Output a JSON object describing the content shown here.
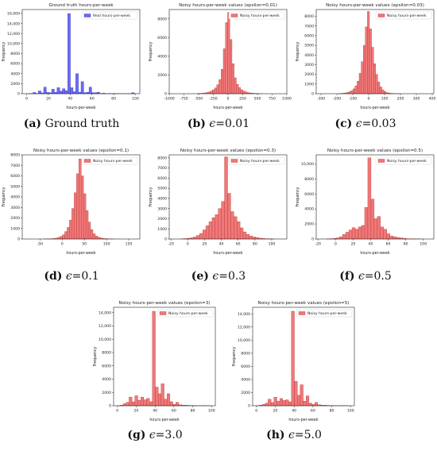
{
  "chart_data": [
    {
      "type": "bar",
      "title": "Ground truth hours-per-week",
      "xlabel": "hours-per-week",
      "ylabel": "Frequency",
      "legend": "Real hours-per-week",
      "color": "#6b6bf2",
      "edge": "#3333bb",
      "xlim": [
        -4,
        104
      ],
      "ylim": [
        0,
        16800
      ],
      "xticks": [
        0,
        20,
        40,
        60,
        80,
        100
      ],
      "yticks": [
        0,
        2000,
        4000,
        6000,
        8000,
        10000,
        12000,
        14000,
        16000
      ],
      "bin_start": 1,
      "bin_width": 2.45,
      "values": [
        20,
        30,
        250,
        60,
        550,
        150,
        1300,
        250,
        200,
        900,
        300,
        1200,
        500,
        1000,
        600,
        16000,
        1200,
        400,
        4000,
        300,
        2400,
        200,
        300,
        1300,
        200,
        200,
        300,
        60,
        100,
        20,
        30,
        20,
        60,
        20,
        20,
        10,
        20,
        10,
        20,
        200
      ],
      "caption_label": "(a)",
      "caption_text": "Ground truth",
      "caption_eps": ""
    },
    {
      "type": "bar",
      "title": "Noisy hours-per-week values (epsilon=0.01)",
      "xlabel": "hours-per-week",
      "ylabel": "Frequency",
      "legend": "Noisy hours-per-week",
      "color": "#f07878",
      "edge": "#b03030",
      "xlim": [
        -1000,
        1000
      ],
      "ylim": [
        0,
        9000
      ],
      "xticks": [
        -1000,
        -750,
        -500,
        -250,
        0,
        250,
        500,
        750,
        1000
      ],
      "yticks": [
        0,
        2000,
        4000,
        6000,
        8000
      ],
      "bin_start": -525,
      "bin_width": 37,
      "values": [
        20,
        30,
        50,
        80,
        120,
        180,
        280,
        420,
        620,
        950,
        1500,
        2600,
        4800,
        7600,
        8700,
        5800,
        3200,
        1700,
        1000,
        650,
        420,
        280,
        180,
        120,
        80,
        50,
        30,
        20,
        10,
        5
      ],
      "caption_label": "(b)",
      "caption_text": "",
      "caption_eps": "0.01"
    },
    {
      "type": "bar",
      "title": "Noisy hours-per-week values (epsilon=0.03)",
      "xlabel": "hours-per-week",
      "ylabel": "Frequency",
      "legend": "Noisy hours-per-week",
      "color": "#f07878",
      "edge": "#b03030",
      "xlim": [
        -330,
        410
      ],
      "ylim": [
        0,
        8700
      ],
      "xticks": [
        -300,
        -200,
        -100,
        0,
        100,
        200,
        300,
        400
      ],
      "yticks": [
        0,
        1000,
        2000,
        3000,
        4000,
        5000,
        6000,
        7000,
        8000
      ],
      "bin_start": -190,
      "bin_width": 13,
      "values": [
        20,
        30,
        50,
        80,
        130,
        200,
        320,
        500,
        800,
        1300,
        2100,
        3300,
        5000,
        6900,
        8500,
        6700,
        4800,
        3100,
        2000,
        1200,
        700,
        400,
        220,
        120,
        70,
        40,
        20,
        10,
        5,
        5
      ],
      "caption_label": "(c)",
      "caption_text": "",
      "caption_eps": "0.03"
    },
    {
      "type": "bar",
      "title": "Noisy hours-per-week values (epsilon=0.1)",
      "xlabel": "hours-per-week",
      "ylabel": "Frequency",
      "legend": "Noisy hours-per-week",
      "color": "#f07878",
      "edge": "#b03030",
      "xlim": [
        -90,
        175
      ],
      "ylim": [
        0,
        8000
      ],
      "xticks": [
        -50,
        0,
        50,
        100,
        150
      ],
      "yticks": [
        0,
        1000,
        2000,
        3000,
        4000,
        5000,
        6000,
        7000,
        8000
      ],
      "bin_start": -42,
      "bin_width": 5.3,
      "values": [
        5,
        10,
        20,
        30,
        50,
        80,
        150,
        250,
        400,
        700,
        1100,
        1800,
        2900,
        4400,
        6200,
        7600,
        6000,
        4300,
        2700,
        1600,
        900,
        500,
        280,
        160,
        90,
        50,
        30,
        20,
        10,
        5
      ],
      "caption_label": "(d)",
      "caption_text": "",
      "caption_eps": "0.1"
    },
    {
      "type": "bar",
      "title": "Noisy hours-per-week values (epsilon=0.3)",
      "xlabel": "hours-per-week",
      "ylabel": "Frequency",
      "legend": "Noisy hours-per-week",
      "color": "#f07878",
      "edge": "#b03030",
      "xlim": [
        -22,
        118
      ],
      "ylim": [
        0,
        8300
      ],
      "xticks": [
        -20,
        0,
        20,
        40,
        60,
        80,
        100
      ],
      "yticks": [
        0,
        1000,
        2000,
        3000,
        4000,
        5000,
        6000,
        7000,
        8000
      ],
      "bin_start": -8,
      "bin_width": 3.7,
      "values": [
        20,
        40,
        70,
        120,
        200,
        350,
        550,
        900,
        1300,
        1700,
        2100,
        2400,
        3000,
        3700,
        8100,
        4500,
        2700,
        2200,
        1700,
        1100,
        700,
        450,
        300,
        200,
        130,
        80,
        50,
        30,
        20,
        10
      ],
      "caption_label": "(e)",
      "caption_text": "",
      "caption_eps": "0.3"
    },
    {
      "type": "bar",
      "title": "Noisy hours-per-week values (epsilon=0.5)",
      "xlabel": "hours-per-week",
      "ylabel": "Frequency",
      "legend": "Noisy hours-per-week",
      "color": "#f07878",
      "edge": "#b03030",
      "xlim": [
        -22,
        112
      ],
      "ylim": [
        0,
        11200
      ],
      "xticks": [
        -20,
        0,
        20,
        40,
        60,
        80,
        100
      ],
      "yticks": [
        0,
        2000,
        4000,
        6000,
        8000,
        10000
      ],
      "bin_start": -10,
      "bin_width": 3.6,
      "values": [
        20,
        40,
        80,
        150,
        300,
        600,
        900,
        1200,
        1500,
        1300,
        1600,
        1800,
        4200,
        10800,
        5300,
        2700,
        3000,
        1600,
        1300,
        700,
        400,
        300,
        200,
        150,
        80,
        40,
        30,
        20,
        10,
        10
      ],
      "caption_label": "(f)",
      "caption_text": "",
      "caption_eps": "0.5"
    },
    {
      "type": "bar",
      "title": "Noisy hours-per-week values (epsilon=3)",
      "xlabel": "hours-per-week",
      "ylabel": "Frequency",
      "legend": "Noisy hours-per-week",
      "color": "#f07878",
      "edge": "#b03030",
      "xlim": [
        -4,
        104
      ],
      "ylim": [
        0,
        14800
      ],
      "xticks": [
        0,
        20,
        40,
        60,
        80,
        100
      ],
      "yticks": [
        0,
        2000,
        4000,
        6000,
        8000,
        10000,
        12000,
        14000
      ],
      "bin_start": 0,
      "bin_width": 3.1,
      "values": [
        20,
        100,
        300,
        500,
        1300,
        600,
        1500,
        800,
        1300,
        900,
        1100,
        600,
        14200,
        2800,
        1800,
        3300,
        1000,
        1800,
        600,
        200,
        500,
        150,
        100,
        80,
        60,
        40,
        30,
        20,
        10,
        30,
        20,
        10
      ],
      "caption_label": "(g)",
      "caption_text": "",
      "caption_eps": "3.0"
    },
    {
      "type": "bar",
      "title": "Noisy hours-per-week values (epsilon=5)",
      "xlabel": "hours-per-week",
      "ylabel": "Frequency",
      "legend": "Noisy hours-per-week",
      "color": "#f07878",
      "edge": "#b03030",
      "xlim": [
        -4,
        104
      ],
      "ylim": [
        0,
        15000
      ],
      "xticks": [
        0,
        20,
        40,
        60,
        80,
        100
      ],
      "yticks": [
        0,
        2000,
        4000,
        6000,
        8000,
        10000,
        12000,
        14000
      ],
      "bin_start": 0,
      "bin_width": 3.1,
      "values": [
        20,
        80,
        200,
        400,
        1000,
        500,
        1300,
        700,
        1100,
        800,
        900,
        600,
        14400,
        3700,
        1600,
        3200,
        700,
        1500,
        400,
        200,
        500,
        150,
        100,
        80,
        60,
        40,
        30,
        20,
        10,
        30,
        20,
        10
      ],
      "caption_label": "(h)",
      "caption_text": "",
      "caption_eps": "5.0"
    }
  ],
  "epsilon_symbol": "ϵ"
}
